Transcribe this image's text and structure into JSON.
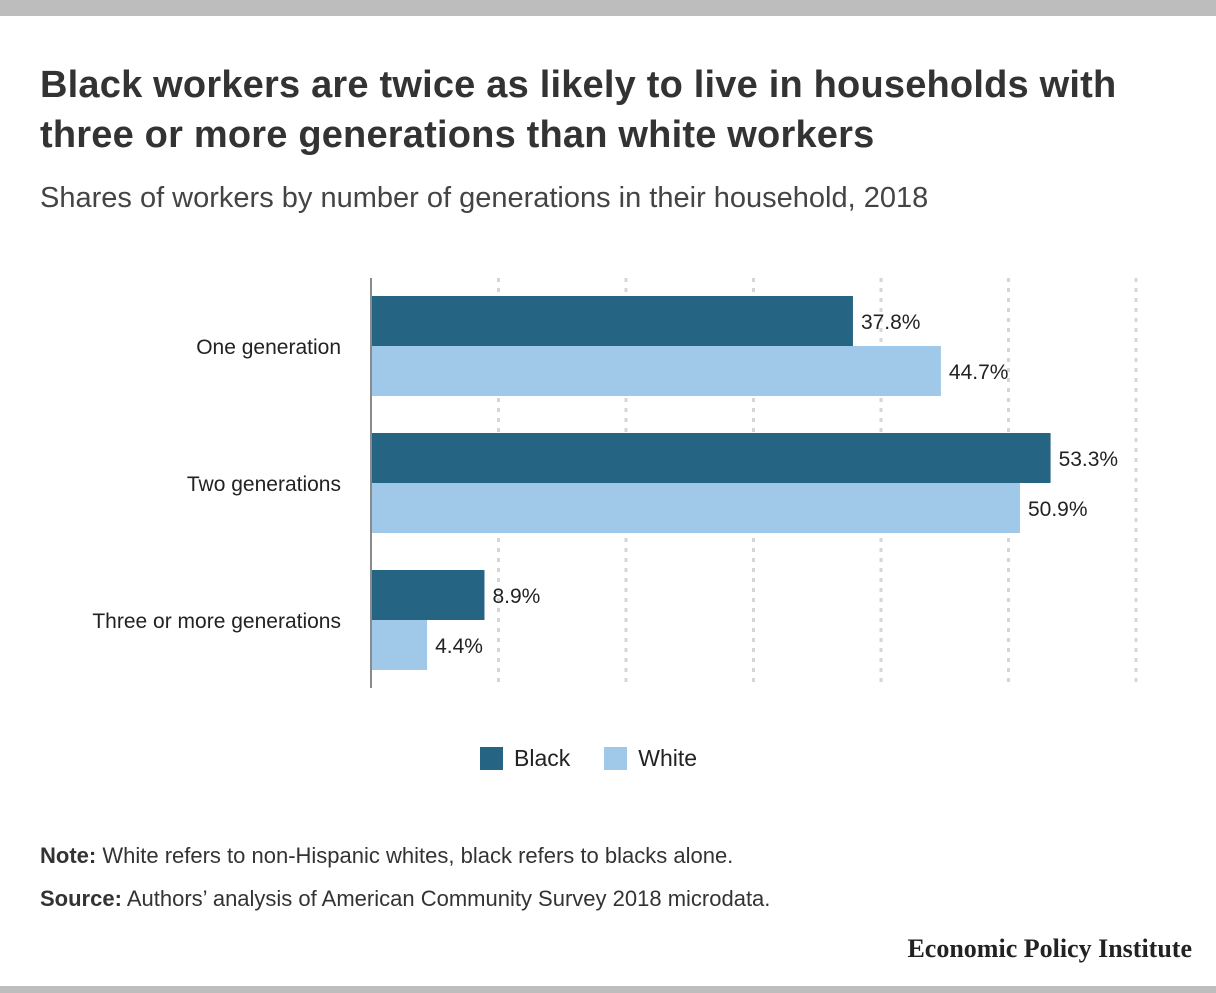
{
  "header": {
    "title": "Black workers are twice as likely to live in households with three or more generations than white workers",
    "subtitle": "Shares of workers by number of generations in their household, 2018"
  },
  "chart_data": {
    "type": "bar",
    "orientation": "horizontal",
    "categories": [
      "One generation",
      "Two generations",
      "Three or more generations"
    ],
    "series": [
      {
        "name": "Black",
        "values": [
          37.8,
          53.3,
          8.9
        ],
        "labels": [
          "37.8%",
          "53.3%",
          "8.9%"
        ],
        "color": "#256482"
      },
      {
        "name": "White",
        "values": [
          44.7,
          50.9,
          4.4
        ],
        "labels": [
          "44.7%",
          "50.9%",
          "4.4%"
        ],
        "color": "#a0c8e9"
      }
    ],
    "xlim": [
      0,
      60
    ],
    "gridlines": [
      10,
      20,
      30,
      40,
      50,
      60
    ],
    "grid": true,
    "legend_position": "bottom-center",
    "unit": "%"
  },
  "legend": {
    "items": [
      {
        "label": "Black",
        "color": "#256482"
      },
      {
        "label": "White",
        "color": "#a0c8e9"
      }
    ]
  },
  "footer": {
    "note_label": "Note:",
    "note_text": "White refers to non-Hispanic whites, black refers to blacks alone.",
    "source_label": "Source:",
    "source_text": "Authors’ analysis of American Community Survey 2018 microdata.",
    "brand": "Economic Policy Institute"
  }
}
